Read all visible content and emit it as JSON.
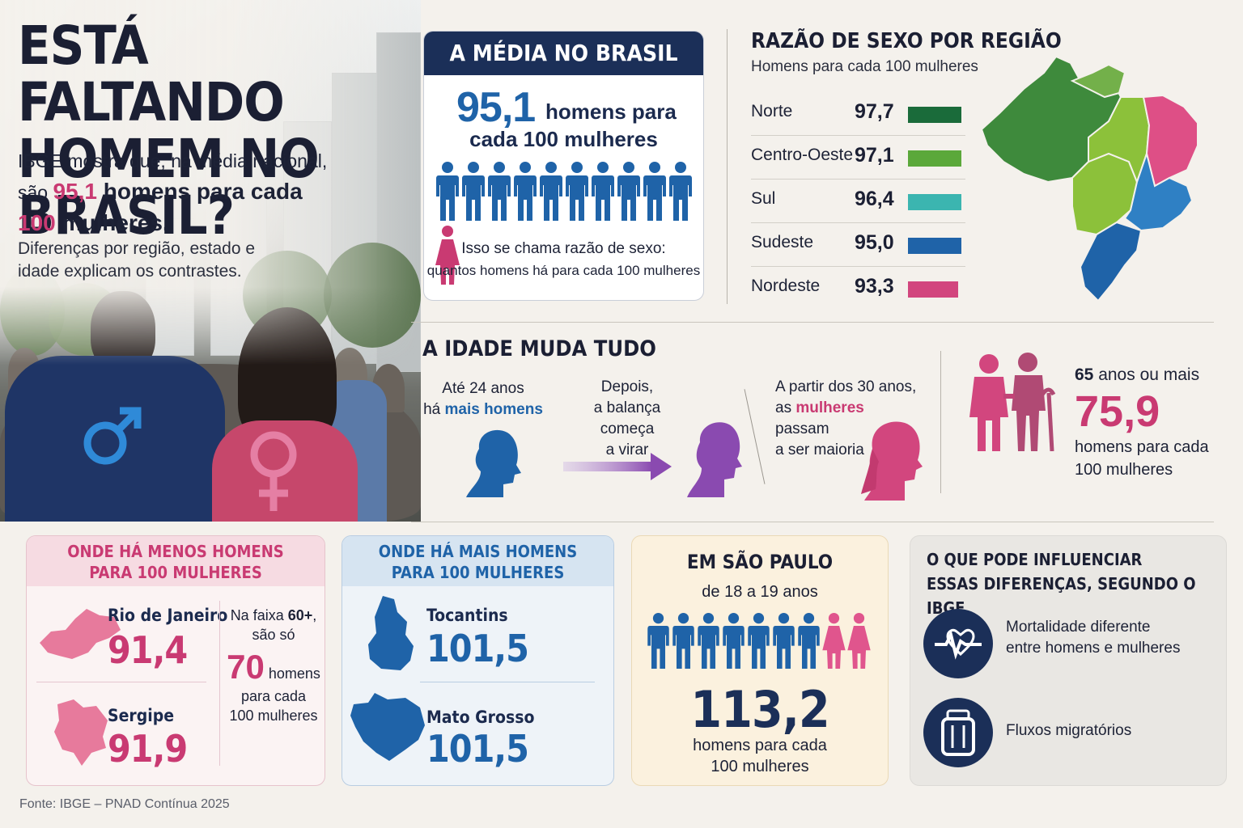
{
  "hero": {
    "title_line1": "ESTÁ FALTANDO",
    "title_line2": "HOMEM NO BRASIL?",
    "lead_a": "IBGE mostra que, na média nacional,",
    "lead_b": "são ",
    "lead_num": "95,1",
    "lead_c": " homens para cada",
    "lead_num2": "100",
    "lead_d": " mulheres.",
    "sub_line1": "Diferenças por região, estado e",
    "sub_line2": "idade explicam os contrastes."
  },
  "media": {
    "heading": "A MÉDIA NO BRASIL",
    "value": "95,1",
    "text1": "homens para",
    "text2": "cada 100 mulheres",
    "men_icons": 10,
    "women_icons": 1,
    "note1": "Isso se chama razão de sexo:",
    "note2": "quantos homens há para cada 100 mulheres"
  },
  "regions": {
    "title": "RAZÃO DE SEXO POR REGIÃO",
    "subtitle": "Homens para cada 100 mulheres",
    "rows": [
      {
        "name": "Norte",
        "value": "97,7",
        "color": "#1a6b3a"
      },
      {
        "name": "Centro-Oeste",
        "value": "97,1",
        "color": "#5ba83a"
      },
      {
        "name": "Sul",
        "value": "96,4",
        "color": "#3bb5b0"
      },
      {
        "name": "Sudeste",
        "value": "95,0",
        "color": "#1f63a8"
      },
      {
        "name": "Nordeste",
        "value": "93,3",
        "color": "#d2467e"
      }
    ]
  },
  "age": {
    "title": "A IDADE MUDA TUDO",
    "s1_a": "Até 24 anos",
    "s1_b": "há ",
    "s1_hl": "mais homens",
    "s2_a": "Depois,",
    "s2_b": "a balança começa",
    "s2_c": "a virar",
    "s3_a": "A partir dos 30 anos,",
    "s3_b": "as ",
    "s3_hl": "mulheres",
    "s3_c": " passam",
    "s3_d": "a ser maioria",
    "old_label_num": "65",
    "old_label": " anos ou mais",
    "old_value": "75,9",
    "old_t1": "homens para cada",
    "old_t2": "100 mulheres"
  },
  "menos": {
    "heading1": "ONDE HÁ MENOS HOMENS",
    "heading2": "PARA 100 MULHERES",
    "states": [
      {
        "name": "Rio de Janeiro",
        "value": "91,4"
      },
      {
        "name": "Sergipe",
        "value": "91,9"
      }
    ],
    "side_a": "Na faixa ",
    "side_b": "60+",
    "side_c": ",",
    "side_d": "são só",
    "side_num": "70",
    "side_e": " homens",
    "side_f": "para cada",
    "side_g": "100 mulheres"
  },
  "mais": {
    "heading1": "ONDE HÁ MAIS HOMENS",
    "heading2": "PARA 100 MULHERES",
    "states": [
      {
        "name": "Tocantins",
        "value": "101,5"
      },
      {
        "name": "Mato Grosso",
        "value": "101,5"
      }
    ]
  },
  "sp": {
    "heading": "EM SÃO PAULO",
    "sub": "de 18 a 19 anos",
    "men_icons": 7,
    "women_icons": 2,
    "value": "113,2",
    "t1": "homens para cada",
    "t2": "100 mulheres"
  },
  "influencia": {
    "heading1": "O QUE PODE INFLUENCIAR",
    "heading2": "ESSAS DIFERENÇAS, SEGUNDO O IBGE",
    "items": [
      {
        "icon": "heartbeat-icon",
        "line1": "Mortalidade diferente",
        "line2": "entre homens e mulheres"
      },
      {
        "icon": "luggage-icon",
        "line1": "Fluxos migratórios",
        "line2": ""
      }
    ]
  },
  "footer": "Fonte: IBGE – PNAD Contínua 2025",
  "colors": {
    "navy": "#1b2f58",
    "blue": "#1f63a8",
    "pink": "#c93a72",
    "purple": "#8a4ab0"
  }
}
